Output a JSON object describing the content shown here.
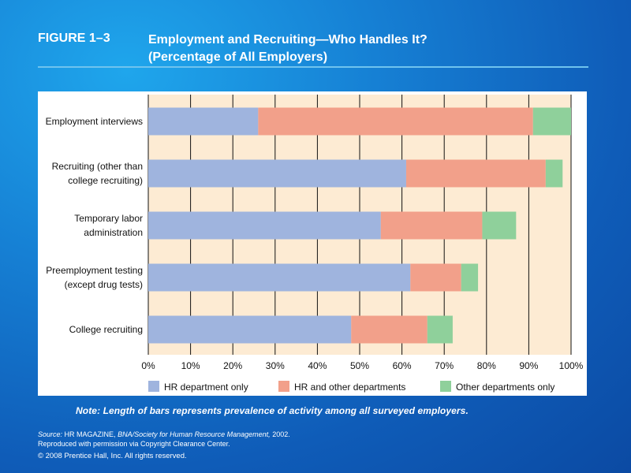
{
  "header": {
    "figure_label": "FIGURE 1–3",
    "title_line1": "Employment and Recruiting—Who Handles It?",
    "title_line2": "(Percentage of All Employers)"
  },
  "note": "Note: Length of bars represents prevalence of activity among all surveyed employers.",
  "source": {
    "label": "Source:",
    "pub1": "HR MAGAZINE,",
    "pub2": "BNA/Society for Human Resource Management,",
    "year": "2002.",
    "line2": "Reproduced with permission via Copyright Clearance Center."
  },
  "copyright": "© 2008 Prentice Hall, Inc. All rights reserved.",
  "colors": {
    "hr_only": "#9fb4de",
    "hr_and_other": "#f2a08a",
    "other_only": "#8fd09b",
    "plot_bg": "#fdebd3",
    "grid": "#111111"
  },
  "chart_data": {
    "type": "bar",
    "orientation": "horizontal",
    "stacked": true,
    "categories": [
      [
        "Employment interviews"
      ],
      [
        "Recruiting (other than",
        "college recruiting)"
      ],
      [
        "Temporary labor",
        "administration"
      ],
      [
        "Preemployment testing",
        "(except drug tests)"
      ],
      [
        "College recruiting"
      ]
    ],
    "series": [
      {
        "name": "HR department only",
        "values": [
          26,
          61,
          55,
          62,
          48
        ]
      },
      {
        "name": "HR and other departments",
        "values": [
          65,
          33,
          24,
          12,
          18
        ]
      },
      {
        "name": "Other departments only",
        "values": [
          9,
          4,
          8,
          4,
          6
        ]
      }
    ],
    "xlim": [
      0,
      100
    ],
    "xticks": [
      "0%",
      "10%",
      "20%",
      "30%",
      "40%",
      "50%",
      "60%",
      "70%",
      "80%",
      "90%",
      "100%"
    ],
    "grid": true,
    "legend_position": "bottom"
  }
}
